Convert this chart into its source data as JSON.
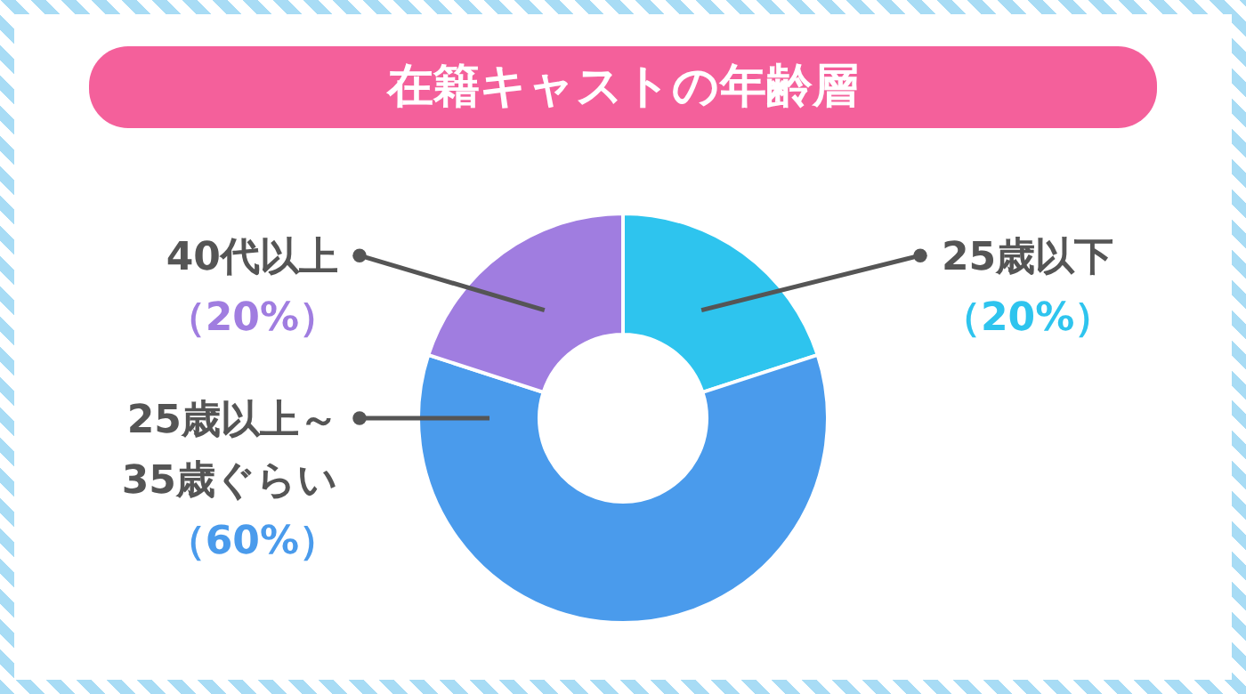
{
  "chart_data": {
    "type": "donut",
    "title": "在籍キャストの年齢層",
    "categories": [
      "25歳以下",
      "25歳以上～\n35歳ぐらい",
      "40代以上"
    ],
    "values": [
      20,
      60,
      20
    ],
    "colors": [
      "#2ec4ee",
      "#4a9bec",
      "#a07de0"
    ],
    "value_labels": [
      "（20%）",
      "（60%）",
      "（20%）"
    ]
  }
}
